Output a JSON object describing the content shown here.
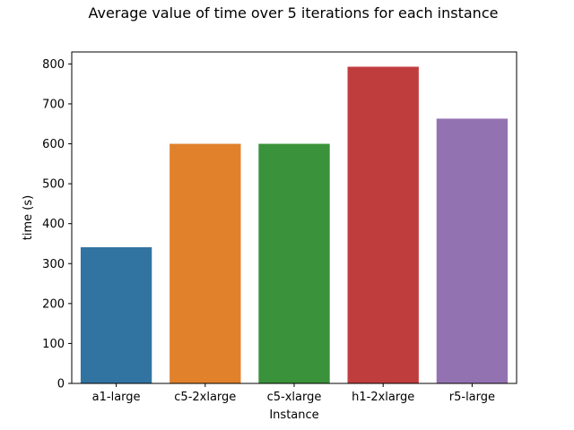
{
  "chart_data": {
    "type": "bar",
    "title": "Average value of time over 5 iterations for each instance",
    "xlabel": "Instance",
    "ylabel": "time (s)",
    "categories": [
      "a1-large",
      "c5-2xlarge",
      "c5-xlarge",
      "h1-2xlarge",
      "r5-large"
    ],
    "values": [
      341,
      600,
      600,
      793,
      663
    ],
    "colors": [
      "#3274a1",
      "#e1812c",
      "#3a923a",
      "#c03d3e",
      "#9372b2"
    ],
    "ylim": [
      0,
      830
    ],
    "yticks": [
      0,
      100,
      200,
      300,
      400,
      500,
      600,
      700,
      800
    ],
    "grid": false,
    "legend": "none"
  }
}
